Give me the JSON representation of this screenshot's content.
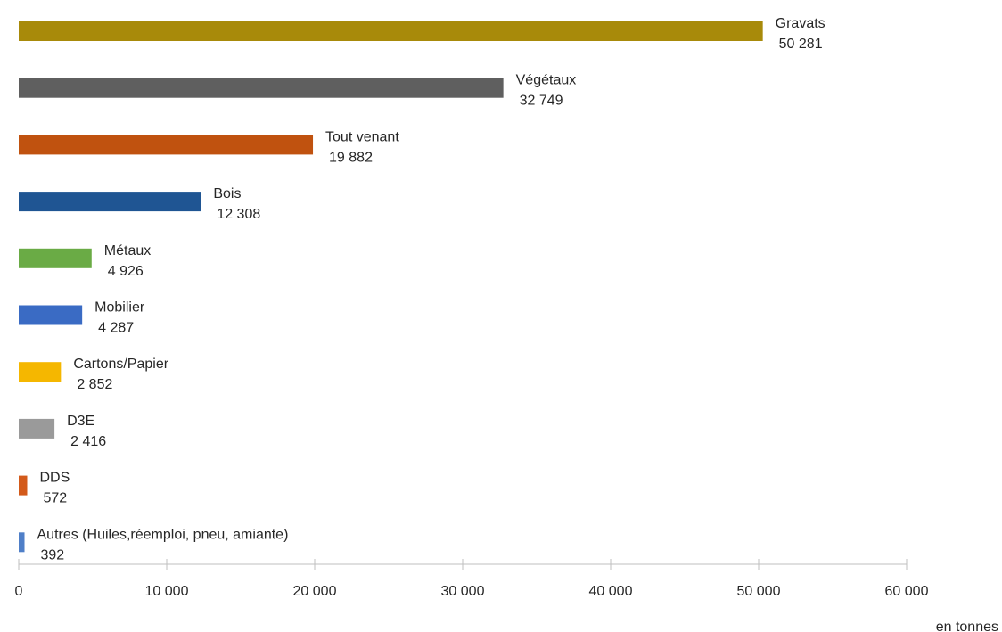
{
  "chart_data": {
    "type": "bar",
    "orientation": "horizontal",
    "categories": [
      "Gravats",
      "Végétaux",
      "Tout venant",
      "Bois",
      "Métaux",
      "Mobilier",
      "Cartons/Papier",
      "D3E",
      "DDS",
      "Autres (Huiles,réemploi, pneu, amiante)"
    ],
    "values": [
      50281,
      32749,
      19882,
      12308,
      4926,
      4287,
      2852,
      2416,
      572,
      392
    ],
    "value_labels": [
      "50 281",
      "32 749",
      "19 882",
      "12 308",
      "4 926",
      "4 287",
      "2 852",
      "2 416",
      "572",
      "392"
    ],
    "colors": [
      "#a88a0a",
      "#5f5f5f",
      "#c0520f",
      "#1f5593",
      "#6aab45",
      "#3a6bc4",
      "#f5b700",
      "#9a9a9a",
      "#d35a1a",
      "#4f7fc8"
    ],
    "x_ticks": [
      0,
      10000,
      20000,
      30000,
      40000,
      50000,
      60000
    ],
    "x_tick_labels": [
      "0",
      "10 000",
      "20 000",
      "30 000",
      "40 000",
      "50 000",
      "60 000"
    ],
    "xlim": [
      0,
      60000
    ],
    "unit_label": "en tonnes",
    "grid": false,
    "legend": "none",
    "data_labels": "above bar end"
  }
}
